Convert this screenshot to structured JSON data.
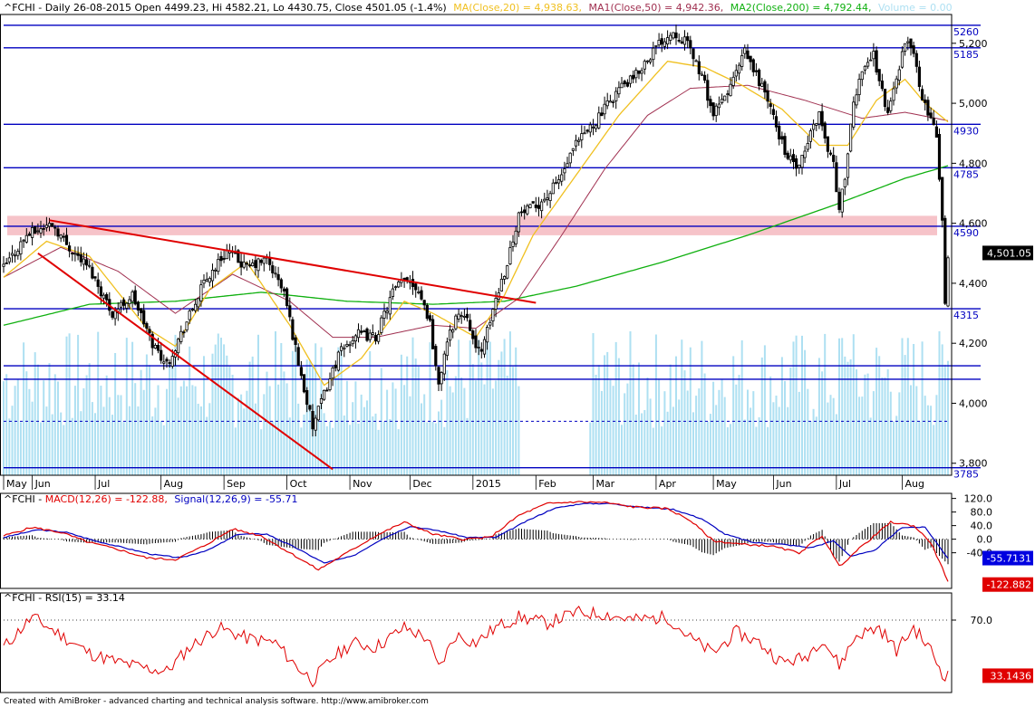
{
  "header": {
    "title_prefix": "^FCHI - Daily 26-08-2015 Open 4499.23, Hi 4582.21, Lo 4430.75, Close 4501.05 (-1.4%)",
    "ma": "MA(Close,20) = 4,938.63,",
    "ma1": "MA1(Close,50) = 4,942.36,",
    "ma2": "MA2(Close,200) = 4,792.44,",
    "volume": "Volume = 0.00"
  },
  "colors": {
    "price": "#000000",
    "ma20": "#f0c020",
    "ma50": "#a03050",
    "ma200": "#10b010",
    "hline": "#0000c0",
    "trend": "#e00000",
    "zone": "#f4b8c0",
    "volume": "#aee0f2",
    "macd": "#0000c0",
    "signal": "#e00000",
    "histogram": "#000000",
    "rsi": "#e00000",
    "axis_text": "#000000",
    "current_label_bg": "#000000",
    "macd_label_bg": "#0000e0",
    "signal_label_bg": "#e00000"
  },
  "chart_data": [
    {
      "type": "candlestick",
      "panel": "price",
      "ylim": [
        3760,
        5290
      ],
      "y_ticks": [
        3800,
        4000,
        4200,
        4400,
        4600,
        4800,
        5000,
        5200
      ],
      "y_tick_labels": [
        "3,800",
        "4,000",
        "4,200",
        "4,400",
        "4,600",
        "4,800",
        "5,000",
        "5,200"
      ],
      "x_labels": [
        {
          "label": "May",
          "t": 0
        },
        {
          "label": "Jun",
          "t": 10
        },
        {
          "label": "Jul",
          "t": 32
        },
        {
          "label": "Aug",
          "t": 55
        },
        {
          "label": "Sep",
          "t": 77
        },
        {
          "label": "Oct",
          "t": 99
        },
        {
          "label": "Nov",
          "t": 121
        },
        {
          "label": "Dec",
          "t": 142
        },
        {
          "label": "2015",
          "t": 164
        },
        {
          "label": "Feb",
          "t": 186
        },
        {
          "label": "Mar",
          "t": 206
        },
        {
          "label": "Apr",
          "t": 228
        },
        {
          "label": "May",
          "t": 248
        },
        {
          "label": "Jun",
          "t": 269
        },
        {
          "label": "Jul",
          "t": 291
        },
        {
          "label": "Aug",
          "t": 314
        }
      ],
      "t_max": 330,
      "anchors": [
        [
          0,
          4450
        ],
        [
          8,
          4560
        ],
        [
          17,
          4600
        ],
        [
          22,
          4530
        ],
        [
          30,
          4450
        ],
        [
          38,
          4300
        ],
        [
          45,
          4360
        ],
        [
          52,
          4200
        ],
        [
          57,
          4130
        ],
        [
          63,
          4250
        ],
        [
          70,
          4400
        ],
        [
          78,
          4510
        ],
        [
          85,
          4450
        ],
        [
          92,
          4480
        ],
        [
          98,
          4370
        ],
        [
          104,
          4090
        ],
        [
          108,
          3920
        ],
        [
          112,
          4030
        ],
        [
          117,
          4160
        ],
        [
          123,
          4230
        ],
        [
          130,
          4220
        ],
        [
          136,
          4370
        ],
        [
          141,
          4420
        ],
        [
          145,
          4380
        ],
        [
          149,
          4270
        ],
        [
          152,
          4050
        ],
        [
          154,
          4170
        ],
        [
          158,
          4290
        ],
        [
          162,
          4300
        ],
        [
          165,
          4170
        ],
        [
          168,
          4200
        ],
        [
          172,
          4350
        ],
        [
          176,
          4470
        ],
        [
          180,
          4630
        ],
        [
          185,
          4650
        ],
        [
          190,
          4690
        ],
        [
          195,
          4760
        ],
        [
          200,
          4860
        ],
        [
          205,
          4920
        ],
        [
          210,
          4980
        ],
        [
          215,
          5050
        ],
        [
          220,
          5080
        ],
        [
          225,
          5150
        ],
        [
          230,
          5210
        ],
        [
          234,
          5240
        ],
        [
          238,
          5210
        ],
        [
          241,
          5160
        ],
        [
          245,
          5060
        ],
        [
          248,
          4960
        ],
        [
          252,
          5020
        ],
        [
          256,
          5100
        ],
        [
          259,
          5170
        ],
        [
          262,
          5110
        ],
        [
          266,
          5040
        ],
        [
          270,
          4920
        ],
        [
          274,
          4820
        ],
        [
          278,
          4780
        ],
        [
          282,
          4900
        ],
        [
          285,
          4970
        ],
        [
          287,
          4880
        ],
        [
          290,
          4800
        ],
        [
          292,
          4640
        ],
        [
          294,
          4760
        ],
        [
          297,
          4990
        ],
        [
          300,
          5120
        ],
        [
          304,
          5160
        ],
        [
          307,
          5040
        ],
        [
          309,
          4960
        ],
        [
          312,
          5090
        ],
        [
          315,
          5200
        ],
        [
          318,
          5180
        ],
        [
          321,
          5000
        ],
        [
          324,
          4960
        ],
        [
          326,
          4890
        ],
        [
          327,
          4760
        ],
        [
          328,
          4620
        ],
        [
          329,
          4320
        ],
        [
          330,
          4501
        ]
      ],
      "ma20_anchors": [
        [
          0,
          4420
        ],
        [
          15,
          4540
        ],
        [
          30,
          4490
        ],
        [
          50,
          4250
        ],
        [
          60,
          4190
        ],
        [
          72,
          4380
        ],
        [
          85,
          4470
        ],
        [
          100,
          4260
        ],
        [
          112,
          4060
        ],
        [
          125,
          4150
        ],
        [
          140,
          4340
        ],
        [
          150,
          4300
        ],
        [
          165,
          4220
        ],
        [
          175,
          4360
        ],
        [
          185,
          4560
        ],
        [
          200,
          4760
        ],
        [
          215,
          4960
        ],
        [
          232,
          5140
        ],
        [
          245,
          5120
        ],
        [
          258,
          5060
        ],
        [
          272,
          4980
        ],
        [
          285,
          4860
        ],
        [
          295,
          4860
        ],
        [
          305,
          5010
        ],
        [
          315,
          5080
        ],
        [
          322,
          5000
        ],
        [
          330,
          4938
        ]
      ],
      "ma50_anchors": [
        [
          0,
          4420
        ],
        [
          20,
          4520
        ],
        [
          40,
          4440
        ],
        [
          60,
          4300
        ],
        [
          80,
          4430
        ],
        [
          100,
          4340
        ],
        [
          115,
          4220
        ],
        [
          130,
          4220
        ],
        [
          150,
          4260
        ],
        [
          165,
          4250
        ],
        [
          180,
          4350
        ],
        [
          195,
          4560
        ],
        [
          210,
          4780
        ],
        [
          225,
          4960
        ],
        [
          240,
          5050
        ],
        [
          260,
          5060
        ],
        [
          280,
          5010
        ],
        [
          300,
          4950
        ],
        [
          315,
          4970
        ],
        [
          330,
          4942
        ]
      ],
      "ma200_anchors": [
        [
          0,
          4260
        ],
        [
          30,
          4330
        ],
        [
          60,
          4340
        ],
        [
          90,
          4370
        ],
        [
          120,
          4340
        ],
        [
          150,
          4330
        ],
        [
          175,
          4340
        ],
        [
          200,
          4390
        ],
        [
          230,
          4470
        ],
        [
          260,
          4560
        ],
        [
          290,
          4660
        ],
        [
          315,
          4750
        ],
        [
          330,
          4792
        ]
      ],
      "horizontal_lines": [
        {
          "value": 5260,
          "label": "5260"
        },
        {
          "value": 5185,
          "label": "5185"
        },
        {
          "value": 4930,
          "label": "4930"
        },
        {
          "value": 4785,
          "label": "4785"
        },
        {
          "value": 4590,
          "label": "4590"
        },
        {
          "value": 4315,
          "label": "4315"
        },
        {
          "value": 4125,
          "label": ""
        },
        {
          "value": 4080,
          "label": ""
        },
        {
          "value": 3785,
          "label": "3785"
        }
      ],
      "dashed_line": 3940,
      "support_zone": [
        4560,
        4625
      ],
      "trendlines": [
        {
          "from": [
            16,
            4610
          ],
          "to": [
            186,
            4335
          ]
        },
        {
          "from": [
            12,
            4500
          ],
          "to": [
            115,
            3780
          ]
        }
      ],
      "current_price_label": "4,501.05",
      "current_price": 4501.05
    },
    {
      "type": "line",
      "panel": "macd",
      "title": "^FCHI - MACD(12,26) = -122.88, Signal(12,26,9) = -55.71",
      "title_parts": {
        "name": "^FCHI - ",
        "macd": "MACD(12,26) = -122.88,",
        "signal": "Signal(12,26,9) = -55.71"
      },
      "ylim": [
        -145,
        135
      ],
      "y_ticks": [
        120,
        80,
        40,
        0,
        -40
      ],
      "y_tick_labels": [
        "120.0",
        "80.0",
        "40.0",
        "0.0",
        "-40.0"
      ],
      "macd_anchors": [
        [
          0,
          10
        ],
        [
          10,
          35
        ],
        [
          20,
          20
        ],
        [
          30,
          -10
        ],
        [
          40,
          -30
        ],
        [
          50,
          -55
        ],
        [
          60,
          -60
        ],
        [
          70,
          -20
        ],
        [
          80,
          30
        ],
        [
          90,
          10
        ],
        [
          100,
          -40
        ],
        [
          110,
          -90
        ],
        [
          120,
          -40
        ],
        [
          130,
          10
        ],
        [
          140,
          50
        ],
        [
          150,
          15
        ],
        [
          160,
          0
        ],
        [
          170,
          5
        ],
        [
          180,
          70
        ],
        [
          190,
          105
        ],
        [
          200,
          110
        ],
        [
          210,
          108
        ],
        [
          220,
          95
        ],
        [
          232,
          90
        ],
        [
          240,
          55
        ],
        [
          248,
          -5
        ],
        [
          258,
          -15
        ],
        [
          268,
          -20
        ],
        [
          278,
          -40
        ],
        [
          286,
          10
        ],
        [
          292,
          -80
        ],
        [
          300,
          -20
        ],
        [
          310,
          50
        ],
        [
          318,
          40
        ],
        [
          324,
          -10
        ],
        [
          330,
          -123
        ]
      ],
      "signal_anchors": [
        [
          0,
          5
        ],
        [
          12,
          28
        ],
        [
          22,
          20
        ],
        [
          32,
          -5
        ],
        [
          42,
          -25
        ],
        [
          52,
          -45
        ],
        [
          62,
          -55
        ],
        [
          72,
          -30
        ],
        [
          82,
          15
        ],
        [
          92,
          15
        ],
        [
          102,
          -25
        ],
        [
          112,
          -70
        ],
        [
          122,
          -50
        ],
        [
          132,
          0
        ],
        [
          142,
          38
        ],
        [
          152,
          25
        ],
        [
          162,
          5
        ],
        [
          172,
          5
        ],
        [
          182,
          50
        ],
        [
          192,
          90
        ],
        [
          202,
          105
        ],
        [
          212,
          105
        ],
        [
          222,
          95
        ],
        [
          234,
          88
        ],
        [
          244,
          60
        ],
        [
          252,
          15
        ],
        [
          262,
          -10
        ],
        [
          272,
          -15
        ],
        [
          282,
          -25
        ],
        [
          290,
          -5
        ],
        [
          296,
          -50
        ],
        [
          304,
          -35
        ],
        [
          314,
          35
        ],
        [
          322,
          35
        ],
        [
          330,
          -56
        ]
      ],
      "macd_label": "-122.882",
      "signal_label": "-55.7131",
      "macd_value": -122.882,
      "signal_value": -55.7131
    },
    {
      "type": "line",
      "panel": "rsi",
      "title": "^FCHI - RSI(15) = 33.14",
      "ylim": [
        22,
        88
      ],
      "y_ticks": [
        70
      ],
      "y_tick_labels": [
        "70.0"
      ],
      "rsi_anchors": [
        [
          0,
          52
        ],
        [
          10,
          72
        ],
        [
          20,
          60
        ],
        [
          30,
          48
        ],
        [
          40,
          42
        ],
        [
          50,
          38
        ],
        [
          57,
          36
        ],
        [
          65,
          52
        ],
        [
          75,
          65
        ],
        [
          85,
          58
        ],
        [
          95,
          55
        ],
        [
          102,
          40
        ],
        [
          108,
          30
        ],
        [
          115,
          45
        ],
        [
          122,
          55
        ],
        [
          130,
          52
        ],
        [
          140,
          65
        ],
        [
          148,
          58
        ],
        [
          152,
          38
        ],
        [
          158,
          60
        ],
        [
          165,
          55
        ],
        [
          172,
          65
        ],
        [
          180,
          72
        ],
        [
          190,
          68
        ],
        [
          200,
          75
        ],
        [
          210,
          74
        ],
        [
          220,
          70
        ],
        [
          232,
          72
        ],
        [
          240,
          58
        ],
        [
          248,
          48
        ],
        [
          256,
          62
        ],
        [
          264,
          55
        ],
        [
          272,
          42
        ],
        [
          280,
          45
        ],
        [
          286,
          58
        ],
        [
          292,
          40
        ],
        [
          298,
          60
        ],
        [
          306,
          65
        ],
        [
          312,
          50
        ],
        [
          318,
          65
        ],
        [
          324,
          50
        ],
        [
          328,
          35
        ],
        [
          330,
          33
        ]
      ],
      "rsi_label": "33.1436",
      "rsi_value": 33.1436
    }
  ],
  "footer": {
    "credit": "Created with AmiBroker - advanced charting and technical analysis software. http://www.amibroker.com"
  }
}
